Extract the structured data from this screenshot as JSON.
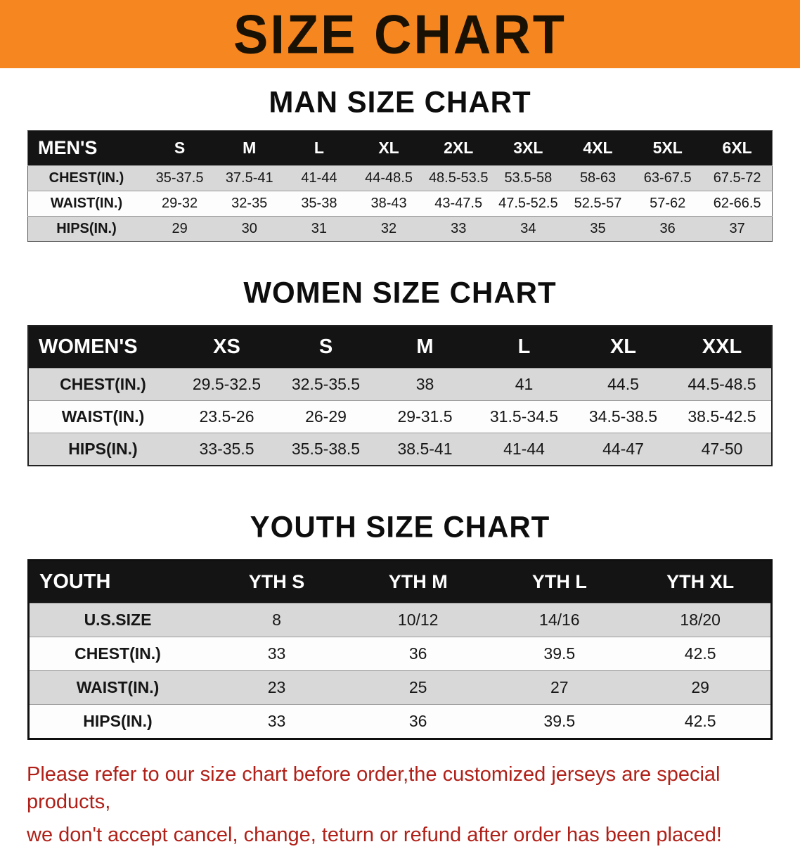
{
  "banner": {
    "title": "SIZE CHART",
    "background_color": "#f6861f",
    "text_color": "#191104"
  },
  "sections": [
    {
      "id": "men",
      "title": "MAN SIZE CHART",
      "header_label": "MEN'S",
      "columns": [
        "S",
        "M",
        "L",
        "XL",
        "2XL",
        "3XL",
        "4XL",
        "5XL",
        "6XL"
      ],
      "rows": [
        {
          "label": "CHEST(IN.)",
          "values": [
            "35-37.5",
            "37.5-41",
            "41-44",
            "44-48.5",
            "48.5-53.5",
            "53.5-58",
            "58-63",
            "63-67.5",
            "67.5-72"
          ]
        },
        {
          "label": "WAIST(IN.)",
          "values": [
            "29-32",
            "32-35",
            "35-38",
            "38-43",
            "43-47.5",
            "47.5-52.5",
            "52.5-57",
            "57-62",
            "62-66.5"
          ]
        },
        {
          "label": "HIPS(IN.)",
          "values": [
            "29",
            "30",
            "31",
            "32",
            "33",
            "34",
            "35",
            "36",
            "37"
          ]
        }
      ]
    },
    {
      "id": "women",
      "title": "WOMEN SIZE CHART",
      "header_label": "WOMEN'S",
      "columns": [
        "XS",
        "S",
        "M",
        "L",
        "XL",
        "XXL"
      ],
      "rows": [
        {
          "label": "CHEST(IN.)",
          "values": [
            "29.5-32.5",
            "32.5-35.5",
            "38",
            "41",
            "44.5",
            "44.5-48.5"
          ]
        },
        {
          "label": "WAIST(IN.)",
          "values": [
            "23.5-26",
            "26-29",
            "29-31.5",
            "31.5-34.5",
            "34.5-38.5",
            "38.5-42.5"
          ]
        },
        {
          "label": "HIPS(IN.)",
          "values": [
            "33-35.5",
            "35.5-38.5",
            "38.5-41",
            "41-44",
            "44-47",
            "47-50"
          ]
        }
      ]
    },
    {
      "id": "youth",
      "title": "YOUTH SIZE CHART",
      "header_label": "YOUTH",
      "columns": [
        "YTH S",
        "YTH M",
        "YTH L",
        "YTH XL"
      ],
      "rows": [
        {
          "label": "U.S.SIZE",
          "values": [
            "8",
            "10/12",
            "14/16",
            "18/20"
          ]
        },
        {
          "label": "CHEST(IN.)",
          "values": [
            "33",
            "36",
            "39.5",
            "42.5"
          ]
        },
        {
          "label": "WAIST(IN.)",
          "values": [
            "23",
            "25",
            "27",
            "29"
          ]
        },
        {
          "label": "HIPS(IN.)",
          "values": [
            "33",
            "36",
            "39.5",
            "42.5"
          ]
        }
      ]
    }
  ],
  "footer": {
    "lines": [
      "Please refer to our size chart before order,the customized jerseys are special products,",
      "we don't accept cancel, change, teturn or refund after order has been placed!"
    ],
    "text_color": "#b02018"
  }
}
